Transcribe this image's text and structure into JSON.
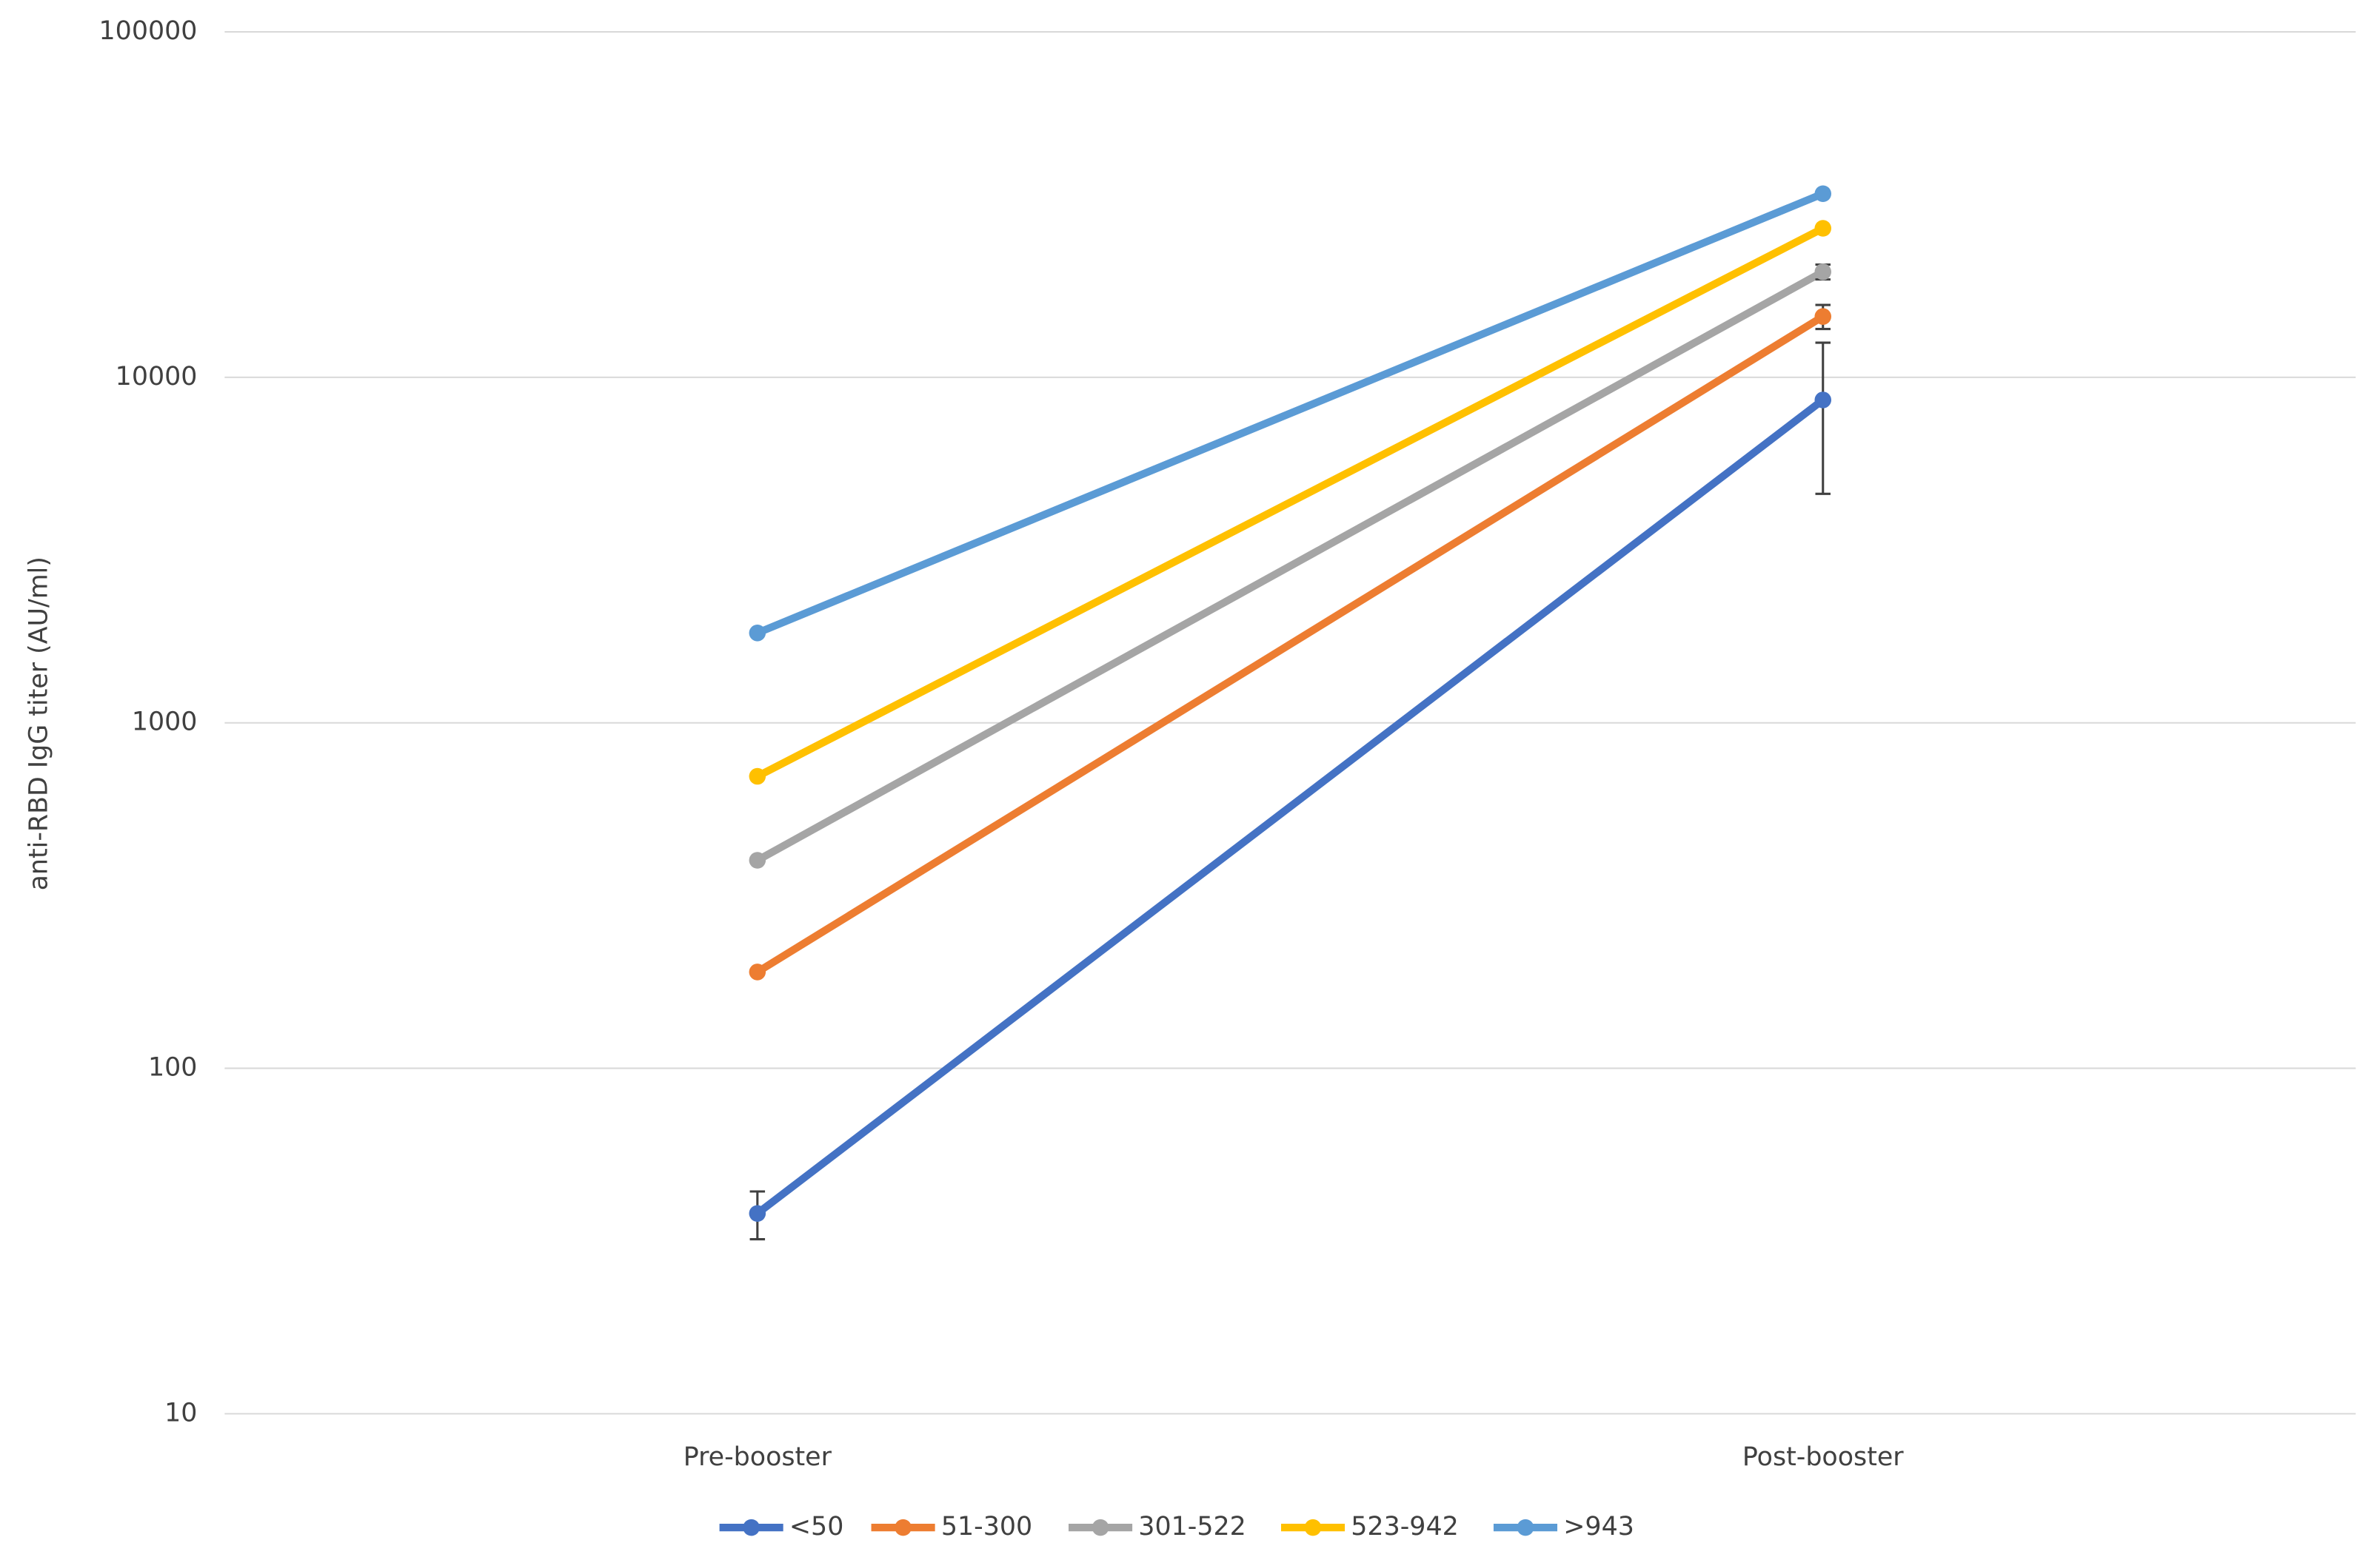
{
  "chart_data": {
    "type": "line",
    "y_label": "anti-RBD IgG titer (AU/ml)",
    "categories": [
      "Pre-booster",
      "Post-booster"
    ],
    "log_scale": true,
    "grid": true,
    "legend": "bottom",
    "ylim": [
      10,
      100000
    ],
    "yticks": [
      10,
      100,
      1000,
      10000,
      100000
    ],
    "series": [
      {
        "name": "<50",
        "color": "#4472c4",
        "values": [
          38,
          8600
        ],
        "errors": [
          6,
          4000
        ]
      },
      {
        "name": "51-300",
        "color": "#ed7d31",
        "values": [
          190,
          15000
        ],
        "errors": [
          null,
          1200
        ]
      },
      {
        "name": "301-522",
        "color": "#a5a5a5",
        "values": [
          400,
          20200
        ],
        "errors": [
          null,
          1000
        ]
      },
      {
        "name": "523-942",
        "color": "#ffc000",
        "values": [
          700,
          27000
        ]
      },
      {
        "name": ">943",
        "color": "#5b9bd5",
        "values": [
          1820,
          34000
        ]
      }
    ]
  }
}
